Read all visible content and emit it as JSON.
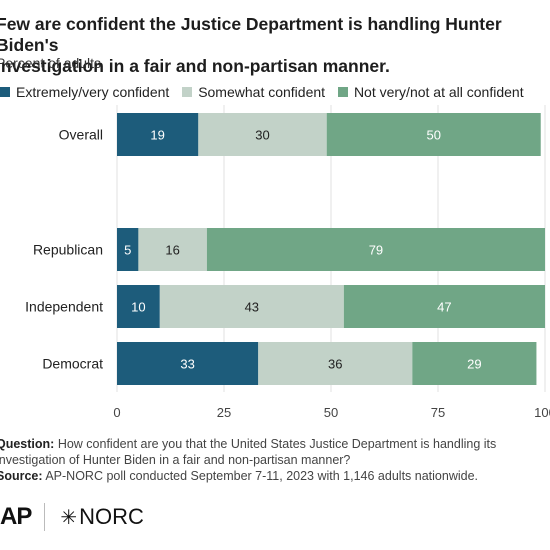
{
  "header": {
    "title": "Few are confident the Justice Department is handling Hunter Biden's\ninvestigation in a fair and non-partisan manner.",
    "subtitle": "Percent of adults"
  },
  "legend": [
    {
      "label": "Extremely/very confident",
      "color": "#1d5c7b"
    },
    {
      "label": "Somewhat confident",
      "color": "#c2d2c8"
    },
    {
      "label": "Not very/not at all confident",
      "color": "#70a686"
    }
  ],
  "chart_data": {
    "type": "bar",
    "orientation": "horizontal",
    "stacked": true,
    "categories": [
      "Overall",
      "Republican",
      "Independent",
      "Democrat"
    ],
    "series": [
      {
        "name": "Extremely/very confident",
        "values": [
          19,
          5,
          10,
          33
        ]
      },
      {
        "name": "Somewhat confident",
        "values": [
          30,
          16,
          43,
          36
        ]
      },
      {
        "name": "Not very/not at all confident",
        "values": [
          50,
          79,
          47,
          29
        ]
      }
    ],
    "xlim": [
      0,
      100
    ],
    "xticks": [
      "0",
      "25",
      "50",
      "75",
      "100"
    ],
    "grid": true,
    "legend_position": "top"
  },
  "footer": {
    "question_label": "Question:",
    "question_text": "How confident are you that the United States Justice Department is handling its investigation of Hunter Biden in a fair and non-partisan manner?",
    "source_label": "Source:",
    "source_text": "AP-NORC poll conducted September 7-11, 2023 with 1,146 adults nationwide."
  },
  "logos": {
    "ap": "AP",
    "norc": "NORC"
  }
}
